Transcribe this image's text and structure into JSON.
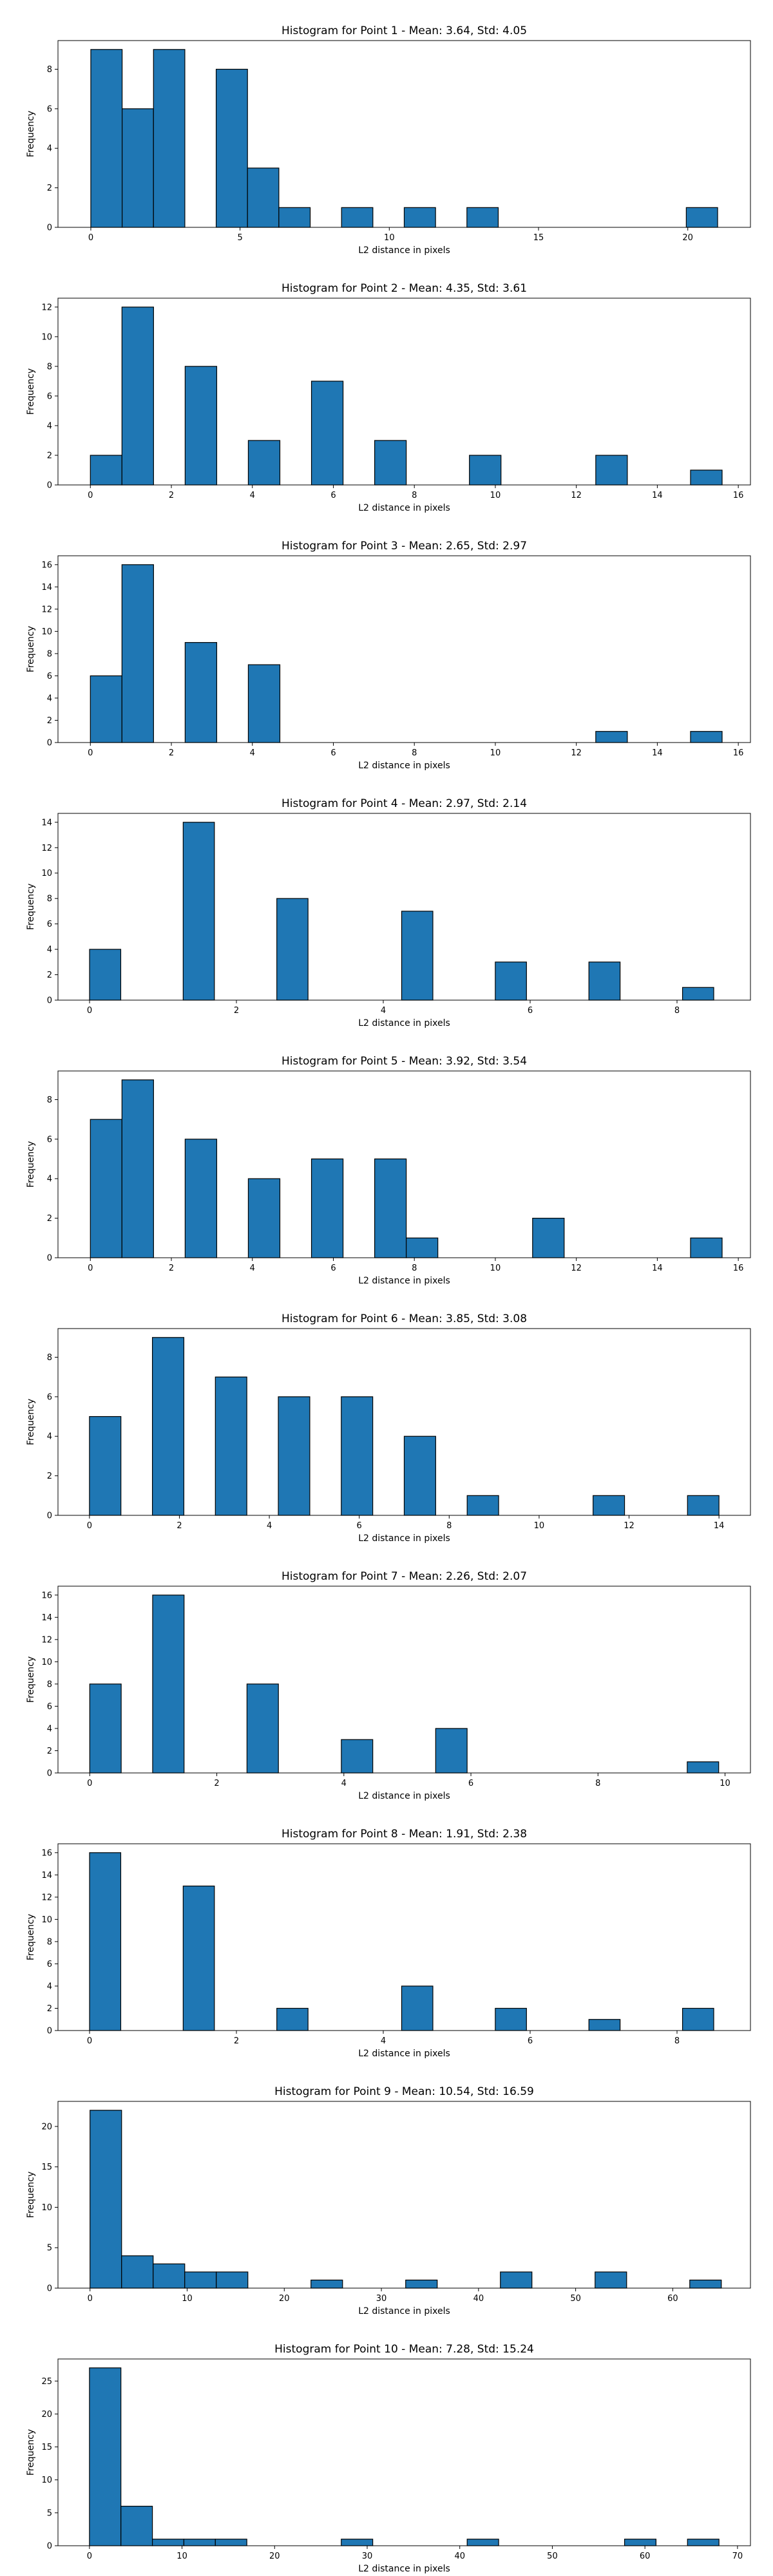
{
  "chart_data": [
    {
      "type": "bar",
      "title": "Histogram for Point 1 - Mean: 3.64, Std: 4.05",
      "xlabel": "L2 distance in pixels",
      "ylabel": "Frequency",
      "xlim": [
        -1.1,
        22.1
      ],
      "ylim": [
        0,
        9.45
      ],
      "xticks": [
        0,
        5,
        10,
        15,
        20
      ],
      "yticks": [
        0,
        2,
        4,
        6,
        8
      ],
      "bins": [
        {
          "x0": 0.0,
          "x1": 1.05,
          "count": 9
        },
        {
          "x0": 1.05,
          "x1": 2.1,
          "count": 6
        },
        {
          "x0": 2.1,
          "x1": 3.15,
          "count": 9
        },
        {
          "x0": 4.2,
          "x1": 5.25,
          "count": 8
        },
        {
          "x0": 5.25,
          "x1": 6.3,
          "count": 3
        },
        {
          "x0": 6.3,
          "x1": 7.35,
          "count": 1
        },
        {
          "x0": 8.4,
          "x1": 9.45,
          "count": 1
        },
        {
          "x0": 10.5,
          "x1": 11.55,
          "count": 1
        },
        {
          "x0": 12.6,
          "x1": 13.65,
          "count": 1
        },
        {
          "x0": 19.95,
          "x1": 21.0,
          "count": 1
        }
      ]
    },
    {
      "type": "bar",
      "title": "Histogram for Point 2 - Mean: 4.35, Std: 3.61",
      "xlabel": "L2 distance in pixels",
      "ylabel": "Frequency",
      "xlim": [
        -0.8,
        16.3
      ],
      "ylim": [
        0,
        12.6
      ],
      "xticks": [
        0,
        2,
        4,
        6,
        8,
        10,
        12,
        14,
        16
      ],
      "yticks": [
        0,
        2,
        4,
        6,
        8,
        10,
        12
      ],
      "bins": [
        {
          "x0": 0.0,
          "x1": 0.78,
          "count": 2
        },
        {
          "x0": 0.78,
          "x1": 1.56,
          "count": 12
        },
        {
          "x0": 2.34,
          "x1": 3.12,
          "count": 8
        },
        {
          "x0": 3.9,
          "x1": 4.68,
          "count": 3
        },
        {
          "x0": 5.46,
          "x1": 6.24,
          "count": 7
        },
        {
          "x0": 7.02,
          "x1": 7.8,
          "count": 3
        },
        {
          "x0": 9.36,
          "x1": 10.14,
          "count": 2
        },
        {
          "x0": 12.48,
          "x1": 13.26,
          "count": 2
        },
        {
          "x0": 14.82,
          "x1": 15.6,
          "count": 1
        }
      ]
    },
    {
      "type": "bar",
      "title": "Histogram for Point 3 - Mean: 2.65, Std: 2.97",
      "xlabel": "L2 distance in pixels",
      "ylabel": "Frequency",
      "xlim": [
        -0.8,
        16.3
      ],
      "ylim": [
        0,
        16.8
      ],
      "xticks": [
        0,
        2,
        4,
        6,
        8,
        10,
        12,
        14,
        16
      ],
      "yticks": [
        0,
        2,
        4,
        6,
        8,
        10,
        12,
        14,
        16
      ],
      "bins": [
        {
          "x0": 0.0,
          "x1": 0.78,
          "count": 6
        },
        {
          "x0": 0.78,
          "x1": 1.56,
          "count": 16
        },
        {
          "x0": 2.34,
          "x1": 3.12,
          "count": 9
        },
        {
          "x0": 3.9,
          "x1": 4.68,
          "count": 7
        },
        {
          "x0": 12.48,
          "x1": 13.26,
          "count": 1
        },
        {
          "x0": 14.82,
          "x1": 15.6,
          "count": 1
        }
      ]
    },
    {
      "type": "bar",
      "title": "Histogram for Point 4 - Mean: 2.97, Std: 2.14",
      "xlabel": "L2 distance in pixels",
      "ylabel": "Frequency",
      "xlim": [
        -0.43,
        9.0
      ],
      "ylim": [
        0,
        14.7
      ],
      "xticks": [
        0,
        2,
        4,
        6,
        8
      ],
      "yticks": [
        0,
        2,
        4,
        6,
        8,
        10,
        12,
        14
      ],
      "bins": [
        {
          "x0": 0.0,
          "x1": 0.425,
          "count": 4
        },
        {
          "x0": 1.275,
          "x1": 1.7,
          "count": 14
        },
        {
          "x0": 2.55,
          "x1": 2.975,
          "count": 8
        },
        {
          "x0": 4.25,
          "x1": 4.675,
          "count": 7
        },
        {
          "x0": 5.525,
          "x1": 5.95,
          "count": 3
        },
        {
          "x0": 6.8,
          "x1": 7.225,
          "count": 3
        },
        {
          "x0": 8.075,
          "x1": 8.5,
          "count": 1
        }
      ]
    },
    {
      "type": "bar",
      "title": "Histogram for Point 5 - Mean: 3.92, Std: 3.54",
      "xlabel": "L2 distance in pixels",
      "ylabel": "Frequency",
      "xlim": [
        -0.8,
        16.3
      ],
      "ylim": [
        0,
        9.45
      ],
      "xticks": [
        0,
        2,
        4,
        6,
        8,
        10,
        12,
        14,
        16
      ],
      "yticks": [
        0,
        2,
        4,
        6,
        8
      ],
      "bins": [
        {
          "x0": 0.0,
          "x1": 0.78,
          "count": 7
        },
        {
          "x0": 0.78,
          "x1": 1.56,
          "count": 9
        },
        {
          "x0": 2.34,
          "x1": 3.12,
          "count": 6
        },
        {
          "x0": 3.9,
          "x1": 4.68,
          "count": 4
        },
        {
          "x0": 5.46,
          "x1": 6.24,
          "count": 5
        },
        {
          "x0": 7.02,
          "x1": 7.8,
          "count": 5
        },
        {
          "x0": 7.8,
          "x1": 8.58,
          "count": 1
        },
        {
          "x0": 10.92,
          "x1": 11.7,
          "count": 2
        },
        {
          "x0": 14.82,
          "x1": 15.6,
          "count": 1
        }
      ]
    },
    {
      "type": "bar",
      "title": "Histogram for Point 6 - Mean: 3.85, Std: 3.08",
      "xlabel": "L2 distance in pixels",
      "ylabel": "Frequency",
      "xlim": [
        -0.7,
        14.7
      ],
      "ylim": [
        0,
        9.45
      ],
      "xticks": [
        0,
        2,
        4,
        6,
        8,
        10,
        12,
        14
      ],
      "yticks": [
        0,
        2,
        4,
        6,
        8
      ],
      "bins": [
        {
          "x0": 0.0,
          "x1": 0.7,
          "count": 5
        },
        {
          "x0": 1.4,
          "x1": 2.1,
          "count": 9
        },
        {
          "x0": 2.8,
          "x1": 3.5,
          "count": 7
        },
        {
          "x0": 4.2,
          "x1": 4.9,
          "count": 6
        },
        {
          "x0": 5.6,
          "x1": 6.3,
          "count": 6
        },
        {
          "x0": 7.0,
          "x1": 7.7,
          "count": 4
        },
        {
          "x0": 8.4,
          "x1": 9.1,
          "count": 1
        },
        {
          "x0": 11.2,
          "x1": 11.9,
          "count": 1
        },
        {
          "x0": 13.3,
          "x1": 14.0,
          "count": 1
        }
      ]
    },
    {
      "type": "bar",
      "title": "Histogram for Point 7 - Mean: 2.26, Std: 2.07",
      "xlabel": "L2 distance in pixels",
      "ylabel": "Frequency",
      "xlim": [
        -0.5,
        10.4
      ],
      "ylim": [
        0,
        16.8
      ],
      "xticks": [
        0,
        2,
        4,
        6,
        8,
        10
      ],
      "yticks": [
        0,
        2,
        4,
        6,
        8,
        10,
        12,
        14,
        16
      ],
      "bins": [
        {
          "x0": 0.0,
          "x1": 0.495,
          "count": 8
        },
        {
          "x0": 0.99,
          "x1": 1.485,
          "count": 16
        },
        {
          "x0": 2.475,
          "x1": 2.97,
          "count": 8
        },
        {
          "x0": 3.96,
          "x1": 4.455,
          "count": 3
        },
        {
          "x0": 5.445,
          "x1": 5.94,
          "count": 4
        },
        {
          "x0": 9.405,
          "x1": 9.9,
          "count": 1
        }
      ]
    },
    {
      "type": "bar",
      "title": "Histogram for Point 8 - Mean: 1.91, Std: 2.38",
      "xlabel": "L2 distance in pixels",
      "ylabel": "Frequency",
      "xlim": [
        -0.43,
        9.0
      ],
      "ylim": [
        0,
        16.8
      ],
      "xticks": [
        0,
        2,
        4,
        6,
        8
      ],
      "yticks": [
        0,
        2,
        4,
        6,
        8,
        10,
        12,
        14,
        16
      ],
      "bins": [
        {
          "x0": 0.0,
          "x1": 0.425,
          "count": 16
        },
        {
          "x0": 1.275,
          "x1": 1.7,
          "count": 13
        },
        {
          "x0": 2.55,
          "x1": 2.975,
          "count": 2
        },
        {
          "x0": 4.25,
          "x1": 4.675,
          "count": 4
        },
        {
          "x0": 5.525,
          "x1": 5.95,
          "count": 2
        },
        {
          "x0": 6.8,
          "x1": 7.225,
          "count": 1
        },
        {
          "x0": 8.075,
          "x1": 8.5,
          "count": 2
        }
      ]
    },
    {
      "type": "bar",
      "title": "Histogram for Point 9 - Mean: 10.54, Std: 16.59",
      "xlabel": "L2 distance in pixels",
      "ylabel": "Frequency",
      "xlim": [
        -3.3,
        68.0
      ],
      "ylim": [
        0,
        23.1
      ],
      "xticks": [
        0,
        10,
        20,
        30,
        40,
        50,
        60
      ],
      "yticks": [
        0,
        5,
        10,
        15,
        20
      ],
      "bins": [
        {
          "x0": 0.0,
          "x1": 3.25,
          "count": 22
        },
        {
          "x0": 3.25,
          "x1": 6.5,
          "count": 4
        },
        {
          "x0": 6.5,
          "x1": 9.75,
          "count": 3
        },
        {
          "x0": 9.75,
          "x1": 13.0,
          "count": 2
        },
        {
          "x0": 13.0,
          "x1": 16.25,
          "count": 2
        },
        {
          "x0": 22.75,
          "x1": 26.0,
          "count": 1
        },
        {
          "x0": 32.5,
          "x1": 35.75,
          "count": 1
        },
        {
          "x0": 42.25,
          "x1": 45.5,
          "count": 2
        },
        {
          "x0": 52.0,
          "x1": 55.25,
          "count": 2
        },
        {
          "x0": 61.75,
          "x1": 65.0,
          "count": 1
        }
      ]
    },
    {
      "type": "bar",
      "title": "Histogram for Point 10 - Mean: 7.28, Std: 15.24",
      "xlabel": "L2 distance in pixels",
      "ylabel": "Frequency",
      "xlim": [
        -3.4,
        71.4
      ],
      "ylim": [
        0,
        28.35
      ],
      "xticks": [
        0,
        10,
        20,
        30,
        40,
        50,
        60,
        70
      ],
      "yticks": [
        0,
        5,
        10,
        15,
        20,
        25
      ],
      "bins": [
        {
          "x0": 0.0,
          "x1": 3.4,
          "count": 27
        },
        {
          "x0": 3.4,
          "x1": 6.8,
          "count": 6
        },
        {
          "x0": 6.8,
          "x1": 10.2,
          "count": 1
        },
        {
          "x0": 10.2,
          "x1": 13.6,
          "count": 1
        },
        {
          "x0": 13.6,
          "x1": 17.0,
          "count": 1
        },
        {
          "x0": 27.2,
          "x1": 30.6,
          "count": 1
        },
        {
          "x0": 40.8,
          "x1": 44.2,
          "count": 1
        },
        {
          "x0": 57.8,
          "x1": 61.2,
          "count": 1
        },
        {
          "x0": 64.6,
          "x1": 68.0,
          "count": 1
        }
      ]
    }
  ]
}
